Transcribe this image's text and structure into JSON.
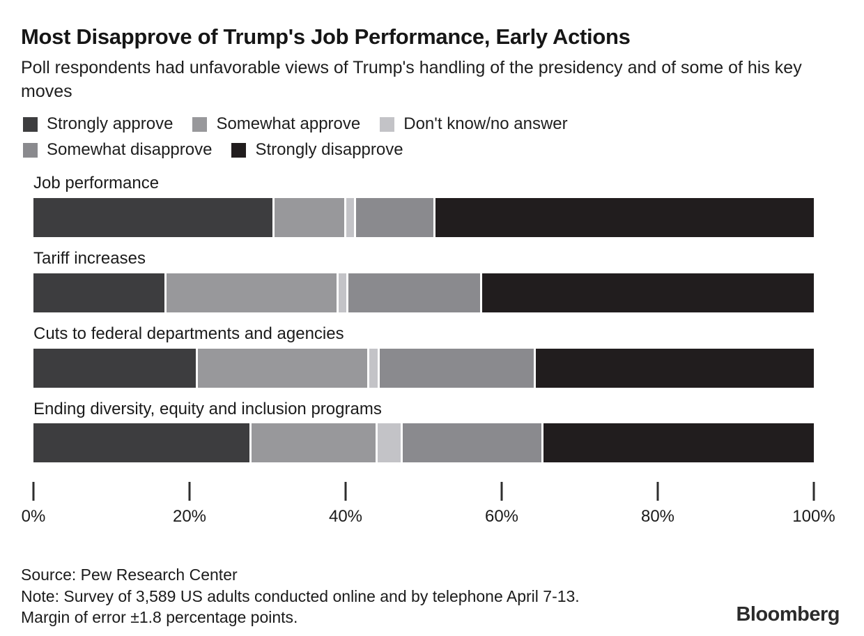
{
  "header": {
    "title": "Most Disapprove of Trump's Job Performance, Early Actions",
    "subtitle": "Poll respondents had unfavorable views of Trump's handling of the presidency and of some of his key moves"
  },
  "chart_data": {
    "type": "bar",
    "orientation": "horizontal",
    "stacked": true,
    "unit": "percent",
    "grid": false,
    "legend_position": "top",
    "categories": [
      "Job performance",
      "Tariff increases",
      "Cuts to federal departments and agencies",
      "Ending diversity, equity and inclusion programs"
    ],
    "series": [
      {
        "name": "Strongly approve",
        "color": "#3d3d3f",
        "values": [
          31,
          17,
          21,
          28
        ]
      },
      {
        "name": "Somewhat approve",
        "color": "#98989b",
        "values": [
          9,
          22,
          22,
          16
        ]
      },
      {
        "name": "Don't know/no answer",
        "color": "#c3c3c7",
        "values": [
          1,
          1,
          1,
          3
        ]
      },
      {
        "name": "Somewhat disapprove",
        "color": "#8a8a8e",
        "values": [
          10,
          17,
          20,
          18
        ]
      },
      {
        "name": "Strongly disapprove",
        "color": "#211d1e",
        "values": [
          49,
          43,
          36,
          35
        ]
      }
    ],
    "xlim": [
      0,
      100
    ],
    "x_ticks": [
      "0%",
      "20%",
      "40%",
      "60%",
      "80%",
      "100%"
    ],
    "x_tick_values": [
      0,
      20,
      40,
      60,
      80,
      100
    ]
  },
  "footer": {
    "source": "Source: Pew Research Center",
    "note": "Note: Survey of 3,589 US adults conducted online and by telephone April 7-13. Margin of error ±1.8 percentage points.",
    "brand": "Bloomberg"
  }
}
